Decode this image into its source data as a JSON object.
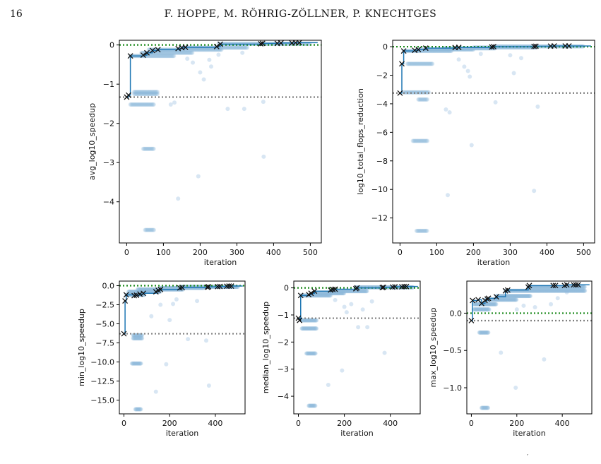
{
  "page": {
    "number": "16",
    "running_head": "F. HOPPE, M. RÖHRIG-ZÖLLNER, P. KNECHTGES",
    "footer_mark": "′"
  },
  "chart_data": [
    {
      "type": "scatter",
      "panel": "top-left",
      "xlabel": "iteration",
      "ylabel": "avg_log10_speedup",
      "xlim": [
        -20,
        530
      ],
      "ylim": [
        -5.05,
        0.12
      ],
      "xticks": [
        0,
        100,
        200,
        300,
        400,
        500
      ],
      "yticks": [
        0,
        -1,
        -2,
        -3,
        -4
      ],
      "reference_lines": {
        "green": 0,
        "gray": -1.33
      },
      "best_x": [
        0,
        5,
        10,
        45,
        55,
        70,
        85,
        140,
        150,
        160,
        245,
        255,
        365,
        370,
        410,
        420,
        450,
        460,
        470
      ],
      "best_y": [
        -1.33,
        -1.28,
        -0.28,
        -0.26,
        -0.2,
        -0.14,
        -0.12,
        -0.09,
        -0.07,
        -0.06,
        -0.04,
        0.02,
        0.03,
        0.04,
        0.04,
        0.05,
        0.05,
        0.06,
        0.06
      ],
      "bands": [
        {
          "x": [
            20,
            85
          ],
          "y": -1.2
        },
        {
          "x": [
            20,
            85
          ],
          "y": -1.25
        },
        {
          "x": [
            10,
            75
          ],
          "y": -1.52
        },
        {
          "x": [
            45,
            75
          ],
          "y": -2.65
        },
        {
          "x": [
            50,
            75
          ],
          "y": -4.72
        },
        {
          "x": [
            10,
            130
          ],
          "y": -0.28
        },
        {
          "x": [
            40,
            180
          ],
          "y": -0.2
        },
        {
          "x": [
            60,
            260
          ],
          "y": -0.12
        },
        {
          "x": [
            150,
            330
          ],
          "y": -0.07
        },
        {
          "x": [
            250,
            500
          ],
          "y": 0.03
        }
      ],
      "outliers": [
        [
          120,
          -1.52
        ],
        [
          130,
          -1.47
        ],
        [
          140,
          -3.92
        ],
        [
          195,
          -3.35
        ],
        [
          200,
          -0.7
        ],
        [
          210,
          -0.88
        ],
        [
          225,
          -0.38
        ],
        [
          275,
          -1.63
        ],
        [
          320,
          -1.63
        ],
        [
          372,
          -1.45
        ],
        [
          373,
          -2.85
        ],
        [
          315,
          -0.2
        ],
        [
          165,
          -0.35
        ],
        [
          250,
          -0.25
        ],
        [
          230,
          -0.55
        ],
        [
          180,
          -0.45
        ]
      ]
    },
    {
      "type": "scatter",
      "panel": "top-right",
      "xlabel": "iteration",
      "ylabel": "log10_total_flops_reduction",
      "xlim": [
        -20,
        530
      ],
      "ylim": [
        -13.75,
        0.45
      ],
      "xticks": [
        0,
        100,
        200,
        300,
        400,
        500
      ],
      "yticks": [
        0,
        -2,
        -4,
        -6,
        -8,
        -10,
        -12
      ],
      "reference_lines": {
        "green": 0,
        "gray": -3.25
      },
      "best_x": [
        0,
        5,
        10,
        40,
        50,
        70,
        150,
        160,
        250,
        255,
        365,
        370,
        410,
        420,
        450,
        460
      ],
      "best_y": [
        -3.25,
        -1.2,
        -0.3,
        -0.25,
        -0.2,
        -0.1,
        -0.06,
        -0.05,
        -0.02,
        0.0,
        0.02,
        0.03,
        0.04,
        0.05,
        0.05,
        0.05
      ],
      "bands": [
        {
          "x": [
            20,
            90
          ],
          "y": -1.2
        },
        {
          "x": [
            10,
            80
          ],
          "y": -3.2
        },
        {
          "x": [
            50,
            75
          ],
          "y": -3.7
        },
        {
          "x": [
            35,
            75
          ],
          "y": -6.6
        },
        {
          "x": [
            45,
            75
          ],
          "y": -12.9
        },
        {
          "x": [
            10,
            140
          ],
          "y": -0.3
        },
        {
          "x": [
            50,
            200
          ],
          "y": -0.2
        },
        {
          "x": [
            120,
            260
          ],
          "y": -0.12
        },
        {
          "x": [
            200,
            370
          ],
          "y": -0.06
        },
        {
          "x": [
            255,
            500
          ],
          "y": 0.02
        }
      ],
      "outliers": [
        [
          130,
          -10.4
        ],
        [
          125,
          -4.4
        ],
        [
          135,
          -4.6
        ],
        [
          175,
          -1.4
        ],
        [
          185,
          -1.7
        ],
        [
          190,
          -2.1
        ],
        [
          195,
          -6.9
        ],
        [
          260,
          -3.9
        ],
        [
          310,
          -1.85
        ],
        [
          365,
          -10.1
        ],
        [
          375,
          -4.2
        ],
        [
          160,
          -0.9
        ],
        [
          300,
          -0.6
        ],
        [
          330,
          -0.8
        ],
        [
          220,
          -0.5
        ]
      ]
    },
    {
      "type": "scatter",
      "panel": "bottom-left",
      "xlabel": "iteration",
      "ylabel": "min_log10_speedup",
      "xlim": [
        -20,
        530
      ],
      "ylim": [
        -16.8,
        0.6
      ],
      "xticks": [
        0,
        200,
        400
      ],
      "yticks": [
        0.0,
        -2.5,
        -5.0,
        -7.5,
        -10.0,
        -12.5,
        -15.0
      ],
      "reference_lines": {
        "green": 0,
        "gray": -6.3
      },
      "best_x": [
        0,
        5,
        10,
        45,
        55,
        70,
        85,
        140,
        150,
        160,
        245,
        255,
        365,
        370,
        410,
        420,
        450,
        460,
        470
      ],
      "best_y": [
        -6.3,
        -2.0,
        -1.2,
        -1.3,
        -1.25,
        -1.1,
        -1.0,
        -0.8,
        -0.6,
        -0.5,
        -0.3,
        -0.25,
        -0.2,
        -0.15,
        -0.12,
        -0.1,
        -0.08,
        -0.05,
        -0.05
      ],
      "bands": [
        {
          "x": [
            10,
            90
          ],
          "y": -1.2
        },
        {
          "x": [
            40,
            80
          ],
          "y": -6.5
        },
        {
          "x": [
            40,
            80
          ],
          "y": -6.9
        },
        {
          "x": [
            35,
            75
          ],
          "y": -10.2
        },
        {
          "x": [
            50,
            75
          ],
          "y": -16.2
        },
        {
          "x": [
            20,
            160
          ],
          "y": -0.8
        },
        {
          "x": [
            60,
            260
          ],
          "y": -0.5
        },
        {
          "x": [
            160,
            350
          ],
          "y": -0.3
        },
        {
          "x": [
            250,
            500
          ],
          "y": -0.15
        }
      ],
      "outliers": [
        [
          140,
          -13.9
        ],
        [
          185,
          -10.3
        ],
        [
          160,
          -2.5
        ],
        [
          200,
          -4.5
        ],
        [
          215,
          -2.4
        ],
        [
          280,
          -7.0
        ],
        [
          360,
          -7.2
        ],
        [
          372,
          -13.1
        ],
        [
          120,
          -4.0
        ],
        [
          230,
          -1.8
        ],
        [
          320,
          -2.0
        ]
      ]
    },
    {
      "type": "scatter",
      "panel": "bottom-middle",
      "xlabel": "iteration",
      "ylabel": "median_log10_speedup",
      "xlim": [
        -20,
        530
      ],
      "ylim": [
        -4.65,
        0.25
      ],
      "xticks": [
        0,
        200,
        400
      ],
      "yticks": [
        0,
        -1,
        -2,
        -3,
        -4
      ],
      "reference_lines": {
        "green": 0,
        "gray": -1.12
      },
      "best_x": [
        0,
        5,
        10,
        45,
        55,
        70,
        140,
        150,
        160,
        250,
        255,
        365,
        370,
        410,
        420,
        450,
        460,
        470
      ],
      "best_y": [
        -1.12,
        -1.2,
        -0.28,
        -0.25,
        -0.2,
        -0.12,
        -0.08,
        -0.06,
        -0.05,
        -0.03,
        0.0,
        0.01,
        0.02,
        0.03,
        0.04,
        0.04,
        0.05,
        0.05
      ],
      "bands": [
        {
          "x": [
            15,
            80
          ],
          "y": -1.2
        },
        {
          "x": [
            15,
            80
          ],
          "y": -1.5
        },
        {
          "x": [
            35,
            75
          ],
          "y": -2.42
        },
        {
          "x": [
            45,
            75
          ],
          "y": -4.35
        },
        {
          "x": [
            10,
            140
          ],
          "y": -0.28
        },
        {
          "x": [
            60,
            200
          ],
          "y": -0.2
        },
        {
          "x": [
            140,
            300
          ],
          "y": -0.12
        },
        {
          "x": [
            250,
            500
          ],
          "y": 0.02
        }
      ],
      "outliers": [
        [
          130,
          -3.58
        ],
        [
          190,
          -3.05
        ],
        [
          200,
          -0.7
        ],
        [
          210,
          -0.9
        ],
        [
          230,
          -0.6
        ],
        [
          260,
          -1.45
        ],
        [
          300,
          -1.45
        ],
        [
          375,
          -2.4
        ],
        [
          320,
          -0.5
        ],
        [
          160,
          -0.45
        ],
        [
          280,
          -0.8
        ]
      ]
    },
    {
      "type": "scatter",
      "panel": "bottom-right",
      "xlabel": "iteration",
      "ylabel": "max_log10_speedup",
      "xlim": [
        -20,
        530
      ],
      "ylim": [
        -1.35,
        0.43
      ],
      "xticks": [
        0,
        200,
        400
      ],
      "yticks": [
        0.0,
        -0.5,
        -1.0
      ],
      "reference_lines": {
        "green": 0,
        "gray": -0.1
      },
      "best_x": [
        0,
        5,
        30,
        45,
        60,
        70,
        75,
        110,
        150,
        160,
        250,
        255,
        360,
        370,
        410,
        420,
        450,
        460,
        470
      ],
      "best_y": [
        -0.1,
        0.17,
        0.18,
        0.13,
        0.17,
        0.19,
        0.2,
        0.22,
        0.3,
        0.31,
        0.35,
        0.37,
        0.37,
        0.37,
        0.37,
        0.38,
        0.38,
        0.38,
        0.38
      ],
      "bands": [
        {
          "x": [
            10,
            80
          ],
          "y": 0.05
        },
        {
          "x": [
            35,
            75
          ],
          "y": -0.26
        },
        {
          "x": [
            45,
            75
          ],
          "y": -1.27
        },
        {
          "x": [
            10,
            110
          ],
          "y": 0.12
        },
        {
          "x": [
            60,
            200
          ],
          "y": 0.18
        },
        {
          "x": [
            110,
            260
          ],
          "y": 0.23
        },
        {
          "x": [
            150,
            500
          ],
          "y": 0.3
        },
        {
          "x": [
            250,
            500
          ],
          "y": 0.35
        }
      ],
      "outliers": [
        [
          130,
          -0.53
        ],
        [
          195,
          -1.0
        ],
        [
          320,
          -0.62
        ],
        [
          200,
          0.05
        ],
        [
          230,
          0.1
        ],
        [
          280,
          0.08
        ],
        [
          350,
          0.12
        ],
        [
          420,
          0.28
        ],
        [
          380,
          0.2
        ]
      ]
    }
  ]
}
